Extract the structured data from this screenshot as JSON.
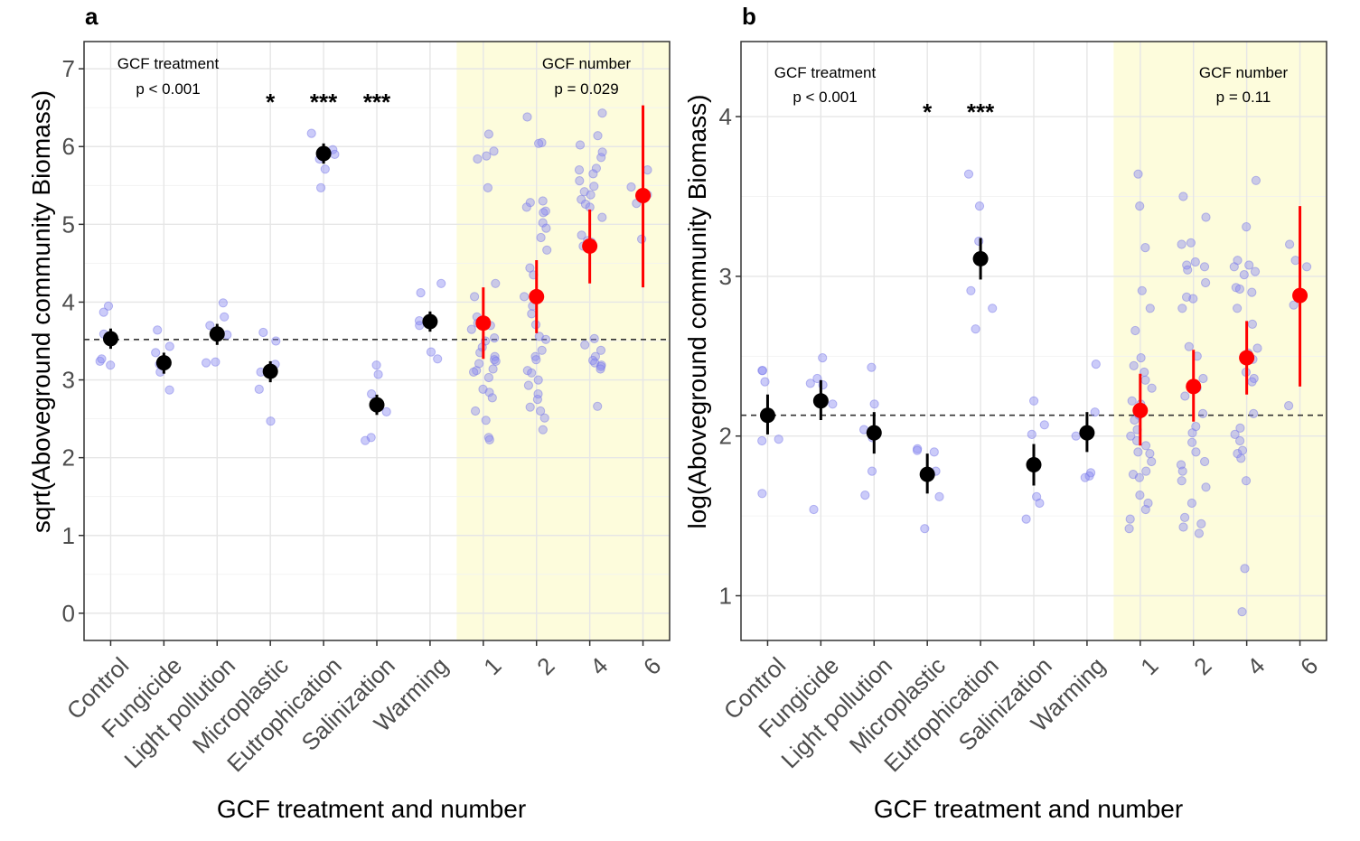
{
  "chart_data": [
    {
      "type": "scatter",
      "panel_label": "a",
      "ylabel": "sqrt(Aboveground community Biomass)",
      "xlabel": "GCF treatment and number",
      "categories": [
        "Control",
        "Fungicide",
        "Light pollution",
        "Microplastic",
        "Eutrophication",
        "Salinization",
        "Warming",
        "1",
        "2",
        "4",
        "6"
      ],
      "yticks": [
        0,
        1,
        2,
        3,
        4,
        5,
        6,
        7
      ],
      "ytick_labels": [
        "0",
        "1",
        "2",
        "3",
        "4",
        "5",
        "6",
        "7"
      ],
      "ylim": [
        -0.35,
        7.35
      ],
      "reference_line": 3.52,
      "annotations": {
        "treatment_title": "GCF treatment",
        "treatment_p": "p < 0.001",
        "number_title": "GCF number",
        "number_p": "p = 0.029"
      },
      "significance": [
        {
          "category": "Microplastic",
          "label": "*"
        },
        {
          "category": "Eutrophication",
          "label": "***"
        },
        {
          "category": "Salinization",
          "label": "***"
        }
      ],
      "highlight_region": {
        "from": "1",
        "to": "6",
        "color": "#fdfcdc"
      },
      "grid": true,
      "means": [
        {
          "category": "Control",
          "mean": 3.53,
          "lo": 3.4,
          "hi": 3.66,
          "color": "#000000"
        },
        {
          "category": "Fungicide",
          "mean": 3.22,
          "lo": 3.08,
          "hi": 3.35,
          "color": "#000000"
        },
        {
          "category": "Light pollution",
          "mean": 3.59,
          "lo": 3.45,
          "hi": 3.72,
          "color": "#000000"
        },
        {
          "category": "Microplastic",
          "mean": 3.11,
          "lo": 2.97,
          "hi": 3.24,
          "color": "#000000"
        },
        {
          "category": "Eutrophication",
          "mean": 5.91,
          "lo": 5.78,
          "hi": 6.04,
          "color": "#000000"
        },
        {
          "category": "Salinization",
          "mean": 2.68,
          "lo": 2.55,
          "hi": 2.81,
          "color": "#000000"
        },
        {
          "category": "Warming",
          "mean": 3.75,
          "lo": 3.62,
          "hi": 3.88,
          "color": "#000000"
        },
        {
          "category": "1",
          "mean": 3.73,
          "lo": 3.27,
          "hi": 4.19,
          "color": "#ff0000"
        },
        {
          "category": "2",
          "mean": 4.07,
          "lo": 3.6,
          "hi": 4.54,
          "color": "#ff0000"
        },
        {
          "category": "4",
          "mean": 4.72,
          "lo": 4.24,
          "hi": 5.19,
          "color": "#ff0000"
        },
        {
          "category": "6",
          "mean": 5.37,
          "lo": 4.19,
          "hi": 6.53,
          "color": "#ff0000"
        }
      ],
      "points": [
        {
          "category": "Control",
          "values": [
            3.95,
            3.87,
            3.59,
            3.24,
            3.19,
            3.27
          ]
        },
        {
          "category": "Fungicide",
          "values": [
            3.64,
            3.43,
            3.35,
            3.2,
            3.1,
            2.87
          ]
        },
        {
          "category": "Light pollution",
          "values": [
            3.99,
            3.81,
            3.7,
            3.58,
            3.23,
            3.22
          ]
        },
        {
          "category": "Microplastic",
          "values": [
            3.61,
            3.5,
            3.2,
            3.1,
            2.88,
            2.47
          ]
        },
        {
          "category": "Eutrophication",
          "values": [
            6.17,
            5.96,
            5.9,
            5.84,
            5.71,
            5.47
          ]
        },
        {
          "category": "Salinization",
          "values": [
            3.19,
            3.07,
            2.82,
            2.59,
            2.26,
            2.22
          ]
        },
        {
          "category": "Warming",
          "values": [
            4.24,
            4.12,
            3.76,
            3.7,
            3.36,
            3.27
          ]
        },
        {
          "category": "1",
          "values": [
            6.16,
            5.94,
            5.88,
            5.84,
            5.47,
            4.24,
            4.07,
            3.81,
            3.73,
            3.7,
            3.65,
            3.54,
            3.5,
            3.42,
            3.35,
            3.3,
            3.26,
            3.24,
            3.21,
            3.14,
            3.12,
            3.1,
            3.03,
            2.88,
            2.84,
            2.77,
            2.6,
            2.48,
            2.26,
            2.23
          ]
        },
        {
          "category": "2",
          "values": [
            6.38,
            6.05,
            6.04,
            5.3,
            5.28,
            5.22,
            5.17,
            5.15,
            5.02,
            4.95,
            4.83,
            4.67,
            4.44,
            4.35,
            4.07,
            3.95,
            3.85,
            3.71,
            3.56,
            3.52,
            3.38,
            3.3,
            3.26,
            3.12,
            3.09,
            3.0,
            2.93,
            2.82,
            2.75,
            2.65,
            2.6,
            2.51,
            2.36
          ]
        },
        {
          "category": "4",
          "values": [
            6.43,
            6.14,
            6.02,
            5.93,
            5.86,
            5.72,
            5.7,
            5.65,
            5.56,
            5.49,
            5.42,
            5.38,
            5.32,
            5.26,
            5.22,
            5.09,
            4.86,
            4.79,
            4.77,
            4.72,
            3.53,
            3.45,
            3.38,
            3.3,
            3.25,
            3.22,
            3.19,
            3.17,
            3.14,
            2.66
          ]
        },
        {
          "category": "6",
          "values": [
            5.7,
            5.48,
            5.38,
            5.27,
            4.81
          ]
        }
      ]
    },
    {
      "type": "scatter",
      "panel_label": "b",
      "ylabel": "log(Aboveground community Biomass)",
      "xlabel": "GCF treatment and number",
      "categories": [
        "Control",
        "Fungicide",
        "Light pollution",
        "Microplastic",
        "Eutrophication",
        "Salinization",
        "Warming",
        "1",
        "2",
        "4",
        "6"
      ],
      "yticks": [
        1,
        2,
        3,
        4
      ],
      "ytick_labels": [
        "1",
        "2",
        "3",
        "4"
      ],
      "ylim": [
        0.72,
        4.47
      ],
      "reference_line": 2.13,
      "annotations": {
        "treatment_title": "GCF treatment",
        "treatment_p": "p < 0.001",
        "number_title": "GCF number",
        "number_p": "p = 0.11"
      },
      "significance": [
        {
          "category": "Microplastic",
          "label": "*"
        },
        {
          "category": "Eutrophication",
          "label": "***"
        }
      ],
      "highlight_region": {
        "from": "1",
        "to": "6",
        "color": "#fdfcdc"
      },
      "grid": true,
      "means": [
        {
          "category": "Control",
          "mean": 2.13,
          "lo": 2.01,
          "hi": 2.26,
          "color": "#000000"
        },
        {
          "category": "Fungicide",
          "mean": 2.22,
          "lo": 2.1,
          "hi": 2.35,
          "color": "#000000"
        },
        {
          "category": "Light pollution",
          "mean": 2.02,
          "lo": 1.89,
          "hi": 2.15,
          "color": "#000000"
        },
        {
          "category": "Microplastic",
          "mean": 1.76,
          "lo": 1.64,
          "hi": 1.89,
          "color": "#000000"
        },
        {
          "category": "Eutrophication",
          "mean": 3.11,
          "lo": 2.98,
          "hi": 3.24,
          "color": "#000000"
        },
        {
          "category": "Salinization",
          "mean": 1.82,
          "lo": 1.69,
          "hi": 1.95,
          "color": "#000000"
        },
        {
          "category": "Warming",
          "mean": 2.02,
          "lo": 1.9,
          "hi": 2.15,
          "color": "#000000"
        },
        {
          "category": "1",
          "mean": 2.16,
          "lo": 1.94,
          "hi": 2.39,
          "color": "#ff0000"
        },
        {
          "category": "2",
          "mean": 2.31,
          "lo": 2.09,
          "hi": 2.54,
          "color": "#ff0000"
        },
        {
          "category": "4",
          "mean": 2.49,
          "lo": 2.26,
          "hi": 2.72,
          "color": "#ff0000"
        },
        {
          "category": "6",
          "mean": 2.88,
          "lo": 2.31,
          "hi": 3.44,
          "color": "#ff0000"
        }
      ],
      "points": [
        {
          "category": "Control",
          "values": [
            2.41,
            2.41,
            2.34,
            1.98,
            1.97,
            1.64
          ]
        },
        {
          "category": "Fungicide",
          "values": [
            2.49,
            2.36,
            2.33,
            2.32,
            2.2,
            1.54
          ]
        },
        {
          "category": "Light pollution",
          "values": [
            2.43,
            2.2,
            2.04,
            1.99,
            1.78,
            1.63
          ]
        },
        {
          "category": "Microplastic",
          "values": [
            1.92,
            1.91,
            1.9,
            1.78,
            1.62,
            1.42
          ]
        },
        {
          "category": "Eutrophication",
          "values": [
            3.64,
            3.44,
            3.22,
            2.91,
            2.8,
            2.67
          ]
        },
        {
          "category": "Salinization",
          "values": [
            2.22,
            2.07,
            2.01,
            1.62,
            1.58,
            1.48
          ]
        },
        {
          "category": "Warming",
          "values": [
            2.45,
            2.15,
            2.0,
            1.77,
            1.75,
            1.74
          ]
        },
        {
          "category": "1",
          "values": [
            3.64,
            3.44,
            3.18,
            2.91,
            2.8,
            2.66,
            2.49,
            2.44,
            2.4,
            2.35,
            2.3,
            2.22,
            2.2,
            2.13,
            2.1,
            2.04,
            2.0,
            1.97,
            1.94,
            1.9,
            1.89,
            1.84,
            1.78,
            1.76,
            1.74,
            1.63,
            1.58,
            1.54,
            1.48,
            1.42
          ]
        },
        {
          "category": "2",
          "values": [
            3.5,
            3.37,
            3.21,
            3.2,
            3.09,
            3.07,
            3.06,
            3.04,
            2.96,
            2.87,
            2.86,
            2.8,
            2.56,
            2.5,
            2.36,
            2.3,
            2.25,
            2.14,
            2.06,
            2.02,
            1.96,
            1.9,
            1.84,
            1.82,
            1.78,
            1.72,
            1.68,
            1.58,
            1.49,
            1.45,
            1.43,
            1.39
          ]
        },
        {
          "category": "4",
          "values": [
            3.6,
            3.31,
            3.1,
            3.07,
            3.06,
            3.03,
            3.01,
            2.93,
            2.92,
            2.9,
            2.8,
            2.7,
            2.55,
            2.52,
            2.48,
            2.4,
            2.36,
            2.34,
            2.14,
            2.05,
            2.01,
            1.97,
            1.91,
            1.89,
            1.86,
            1.72,
            1.17,
            0.9
          ]
        },
        {
          "category": "6",
          "values": [
            3.2,
            3.1,
            3.06,
            2.89,
            2.82,
            2.19
          ]
        }
      ]
    }
  ]
}
